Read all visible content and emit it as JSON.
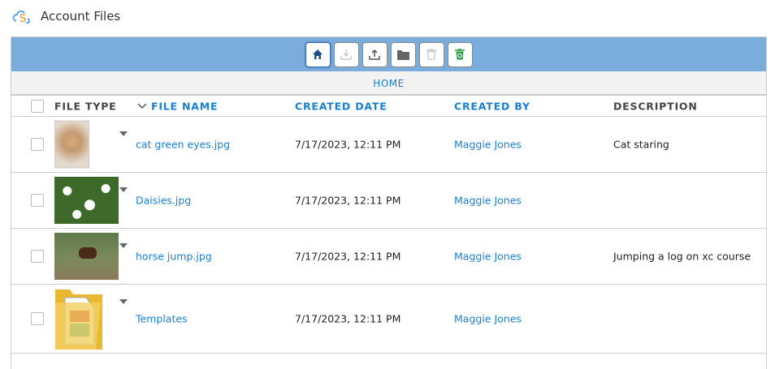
{
  "app": {
    "title": "Account Files"
  },
  "toolbar": {
    "buttons": [
      {
        "icon": "home-icon"
      },
      {
        "icon": "download-icon"
      },
      {
        "icon": "upload-icon"
      },
      {
        "icon": "folder-icon"
      },
      {
        "icon": "trash-icon"
      },
      {
        "icon": "recycle-bin-icon"
      }
    ]
  },
  "breadcrumb": {
    "current": "HOME"
  },
  "table": {
    "headers": {
      "file_type": "FILE TYPE",
      "file_name": "FILE NAME",
      "created_date": "CREATED DATE",
      "created_by": "CREATED BY",
      "description": "DESCRIPTION"
    },
    "sort": {
      "column": "file_name",
      "direction": "descending"
    },
    "rows": [
      {
        "type": "image",
        "name": "cat green eyes.jpg",
        "date": "7/17/2023, 12:11 PM",
        "by": "Maggie Jones",
        "desc": "Cat staring"
      },
      {
        "type": "image",
        "name": "Daisies.jpg",
        "date": "7/17/2023, 12:11 PM",
        "by": "Maggie Jones",
        "desc": ""
      },
      {
        "type": "image",
        "name": "horse jump.jpg",
        "date": "7/17/2023, 12:11 PM",
        "by": "Maggie Jones",
        "desc": "Jumping a log on xc course"
      },
      {
        "type": "folder",
        "name": "Templates",
        "date": "7/17/2023, 12:11 PM",
        "by": "Maggie Jones",
        "desc": ""
      }
    ]
  },
  "colors": {
    "toolbar": "#7aaddc",
    "link": "#1a7fd0"
  }
}
